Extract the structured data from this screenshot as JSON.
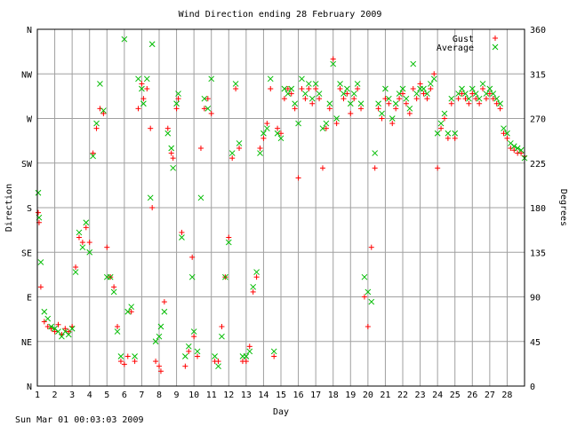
{
  "footer": {
    "timestamp": "Sun Mar 01 00:03:03 2009"
  },
  "chart_data": {
    "type": "scatter",
    "title": "Wind Direction ending 28 February 2009",
    "xlabel": "Day",
    "ylabel": "Direction",
    "y2label": "Degrees",
    "xlim": [
      1,
      29
    ],
    "ylim": [
      0,
      360
    ],
    "x_ticks": [
      1,
      2,
      3,
      4,
      5,
      6,
      7,
      8,
      9,
      10,
      11,
      12,
      13,
      14,
      15,
      16,
      17,
      18,
      19,
      20,
      21,
      22,
      23,
      24,
      25,
      26,
      27,
      28
    ],
    "y_ticks_compass": [
      {
        "label": "N",
        "value": 0
      },
      {
        "label": "NE",
        "value": 45
      },
      {
        "label": "E",
        "value": 90
      },
      {
        "label": "SE",
        "value": 135
      },
      {
        "label": "S",
        "value": 180
      },
      {
        "label": "SW",
        "value": 225
      },
      {
        "label": "W",
        "value": 270
      },
      {
        "label": "NW",
        "value": 315
      },
      {
        "label": "N",
        "value": 360
      }
    ],
    "y2_ticks": [
      0,
      45,
      90,
      135,
      180,
      225,
      270,
      315,
      360
    ],
    "grid": true,
    "legend_position": "top-right",
    "series": [
      {
        "name": "Gust",
        "color": "#ff0000",
        "marker": "plus",
        "points": [
          [
            1.05,
            175
          ],
          [
            1.1,
            165
          ],
          [
            1.2,
            100
          ],
          [
            1.4,
            65
          ],
          [
            1.6,
            60
          ],
          [
            1.8,
            58
          ],
          [
            2.0,
            55
          ],
          [
            2.2,
            62
          ],
          [
            2.4,
            52
          ],
          [
            2.6,
            58
          ],
          [
            2.8,
            55
          ],
          [
            3.0,
            60
          ],
          [
            3.2,
            120
          ],
          [
            3.4,
            150
          ],
          [
            3.6,
            145
          ],
          [
            3.8,
            160
          ],
          [
            4.0,
            145
          ],
          [
            4.2,
            235
          ],
          [
            4.4,
            260
          ],
          [
            4.6,
            280
          ],
          [
            4.8,
            275
          ],
          [
            5.0,
            140
          ],
          [
            5.2,
            110
          ],
          [
            5.4,
            100
          ],
          [
            5.6,
            60
          ],
          [
            5.8,
            25
          ],
          [
            6.0,
            22
          ],
          [
            6.2,
            30
          ],
          [
            6.4,
            75
          ],
          [
            6.6,
            25
          ],
          [
            6.8,
            280
          ],
          [
            7.0,
            305
          ],
          [
            7.1,
            290
          ],
          [
            7.3,
            300
          ],
          [
            7.5,
            260
          ],
          [
            7.6,
            180
          ],
          [
            7.8,
            25
          ],
          [
            8.0,
            20
          ],
          [
            8.1,
            15
          ],
          [
            8.3,
            85
          ],
          [
            8.5,
            260
          ],
          [
            8.7,
            235
          ],
          [
            8.8,
            230
          ],
          [
            9.0,
            280
          ],
          [
            9.1,
            290
          ],
          [
            9.3,
            155
          ],
          [
            9.5,
            20
          ],
          [
            9.7,
            35
          ],
          [
            9.9,
            130
          ],
          [
            10.0,
            50
          ],
          [
            10.2,
            30
          ],
          [
            10.4,
            240
          ],
          [
            10.6,
            280
          ],
          [
            10.8,
            290
          ],
          [
            11.0,
            275
          ],
          [
            11.2,
            25
          ],
          [
            11.4,
            25
          ],
          [
            11.6,
            60
          ],
          [
            11.8,
            110
          ],
          [
            12.0,
            150
          ],
          [
            12.2,
            230
          ],
          [
            12.4,
            300
          ],
          [
            12.6,
            240
          ],
          [
            12.8,
            25
          ],
          [
            13.0,
            25
          ],
          [
            13.2,
            40
          ],
          [
            13.4,
            95
          ],
          [
            13.6,
            110
          ],
          [
            13.8,
            240
          ],
          [
            14.0,
            250
          ],
          [
            14.2,
            265
          ],
          [
            14.4,
            300
          ],
          [
            14.6,
            30
          ],
          [
            14.8,
            260
          ],
          [
            15.0,
            255
          ],
          [
            15.2,
            290
          ],
          [
            15.4,
            300
          ],
          [
            15.6,
            295
          ],
          [
            15.8,
            280
          ],
          [
            16.0,
            210
          ],
          [
            16.2,
            300
          ],
          [
            16.4,
            290
          ],
          [
            16.6,
            300
          ],
          [
            16.8,
            285
          ],
          [
            17.0,
            300
          ],
          [
            17.2,
            290
          ],
          [
            17.4,
            220
          ],
          [
            17.6,
            260
          ],
          [
            17.8,
            280
          ],
          [
            18.0,
            330
          ],
          [
            18.2,
            265
          ],
          [
            18.4,
            300
          ],
          [
            18.6,
            290
          ],
          [
            18.8,
            295
          ],
          [
            19.0,
            275
          ],
          [
            19.2,
            290
          ],
          [
            19.4,
            300
          ],
          [
            19.6,
            280
          ],
          [
            19.8,
            90
          ],
          [
            20.0,
            60
          ],
          [
            20.2,
            140
          ],
          [
            20.4,
            220
          ],
          [
            20.6,
            280
          ],
          [
            20.8,
            270
          ],
          [
            21.0,
            290
          ],
          [
            21.2,
            285
          ],
          [
            21.4,
            265
          ],
          [
            21.6,
            280
          ],
          [
            21.8,
            290
          ],
          [
            22.0,
            295
          ],
          [
            22.2,
            285
          ],
          [
            22.4,
            275
          ],
          [
            22.6,
            300
          ],
          [
            22.8,
            290
          ],
          [
            23.0,
            305
          ],
          [
            23.2,
            295
          ],
          [
            23.4,
            290
          ],
          [
            23.6,
            300
          ],
          [
            23.8,
            315
          ],
          [
            24.0,
            220
          ],
          [
            24.2,
            260
          ],
          [
            24.4,
            270
          ],
          [
            24.6,
            250
          ],
          [
            24.8,
            285
          ],
          [
            25.0,
            250
          ],
          [
            25.2,
            290
          ],
          [
            25.4,
            295
          ],
          [
            25.6,
            290
          ],
          [
            25.8,
            285
          ],
          [
            26.0,
            295
          ],
          [
            26.2,
            290
          ],
          [
            26.4,
            285
          ],
          [
            26.6,
            300
          ],
          [
            26.8,
            290
          ],
          [
            27.0,
            295
          ],
          [
            27.2,
            290
          ],
          [
            27.4,
            285
          ],
          [
            27.6,
            280
          ],
          [
            27.8,
            255
          ],
          [
            28.0,
            250
          ],
          [
            28.2,
            240
          ],
          [
            28.4,
            238
          ],
          [
            28.6,
            235
          ],
          [
            28.8,
            235
          ],
          [
            29.0,
            232
          ]
        ]
      },
      {
        "name": "Average",
        "color": "#00bb00",
        "marker": "cross",
        "points": [
          [
            1.05,
            195
          ],
          [
            1.1,
            170
          ],
          [
            1.2,
            125
          ],
          [
            1.4,
            75
          ],
          [
            1.6,
            68
          ],
          [
            1.8,
            60
          ],
          [
            2.0,
            58
          ],
          [
            2.2,
            55
          ],
          [
            2.4,
            50
          ],
          [
            2.6,
            55
          ],
          [
            2.8,
            52
          ],
          [
            3.0,
            58
          ],
          [
            3.2,
            115
          ],
          [
            3.4,
            155
          ],
          [
            3.6,
            140
          ],
          [
            3.8,
            165
          ],
          [
            4.0,
            135
          ],
          [
            4.2,
            232
          ],
          [
            4.4,
            265
          ],
          [
            4.6,
            305
          ],
          [
            4.8,
            278
          ],
          [
            5.0,
            110
          ],
          [
            5.2,
            110
          ],
          [
            5.4,
            95
          ],
          [
            5.6,
            55
          ],
          [
            5.8,
            30
          ],
          [
            6.0,
            350
          ],
          [
            6.2,
            75
          ],
          [
            6.4,
            80
          ],
          [
            6.6,
            30
          ],
          [
            6.8,
            310
          ],
          [
            7.0,
            300
          ],
          [
            7.1,
            285
          ],
          [
            7.3,
            310
          ],
          [
            7.5,
            190
          ],
          [
            7.6,
            345
          ],
          [
            7.8,
            45
          ],
          [
            8.0,
            50
          ],
          [
            8.1,
            60
          ],
          [
            8.3,
            75
          ],
          [
            8.5,
            255
          ],
          [
            8.7,
            240
          ],
          [
            8.8,
            220
          ],
          [
            9.0,
            285
          ],
          [
            9.1,
            295
          ],
          [
            9.3,
            150
          ],
          [
            9.5,
            30
          ],
          [
            9.7,
            40
          ],
          [
            9.9,
            110
          ],
          [
            10.0,
            55
          ],
          [
            10.2,
            35
          ],
          [
            10.4,
            190
          ],
          [
            10.6,
            290
          ],
          [
            10.8,
            280
          ],
          [
            11.0,
            310
          ],
          [
            11.2,
            30
          ],
          [
            11.4,
            20
          ],
          [
            11.6,
            50
          ],
          [
            11.8,
            110
          ],
          [
            12.0,
            145
          ],
          [
            12.2,
            235
          ],
          [
            12.4,
            305
          ],
          [
            12.6,
            245
          ],
          [
            12.8,
            30
          ],
          [
            13.0,
            30
          ],
          [
            13.2,
            35
          ],
          [
            13.4,
            100
          ],
          [
            13.6,
            115
          ],
          [
            13.8,
            235
          ],
          [
            14.0,
            255
          ],
          [
            14.2,
            260
          ],
          [
            14.4,
            310
          ],
          [
            14.6,
            35
          ],
          [
            14.8,
            255
          ],
          [
            15.0,
            250
          ],
          [
            15.2,
            300
          ],
          [
            15.4,
            295
          ],
          [
            15.6,
            300
          ],
          [
            15.8,
            285
          ],
          [
            16.0,
            265
          ],
          [
            16.2,
            310
          ],
          [
            16.4,
            295
          ],
          [
            16.6,
            305
          ],
          [
            16.8,
            290
          ],
          [
            17.0,
            305
          ],
          [
            17.2,
            295
          ],
          [
            17.4,
            260
          ],
          [
            17.6,
            265
          ],
          [
            17.8,
            285
          ],
          [
            18.0,
            325
          ],
          [
            18.2,
            270
          ],
          [
            18.4,
            305
          ],
          [
            18.6,
            295
          ],
          [
            18.8,
            300
          ],
          [
            19.0,
            285
          ],
          [
            19.2,
            295
          ],
          [
            19.4,
            305
          ],
          [
            19.6,
            285
          ],
          [
            19.8,
            110
          ],
          [
            20.0,
            95
          ],
          [
            20.2,
            85
          ],
          [
            20.4,
            235
          ],
          [
            20.6,
            285
          ],
          [
            20.8,
            275
          ],
          [
            21.0,
            300
          ],
          [
            21.2,
            290
          ],
          [
            21.4,
            270
          ],
          [
            21.6,
            285
          ],
          [
            21.8,
            295
          ],
          [
            22.0,
            300
          ],
          [
            22.2,
            290
          ],
          [
            22.4,
            280
          ],
          [
            22.6,
            325
          ],
          [
            22.8,
            295
          ],
          [
            23.0,
            300
          ],
          [
            23.2,
            300
          ],
          [
            23.4,
            295
          ],
          [
            23.6,
            305
          ],
          [
            23.8,
            310
          ],
          [
            24.0,
            255
          ],
          [
            24.2,
            265
          ],
          [
            24.4,
            275
          ],
          [
            24.6,
            255
          ],
          [
            24.8,
            290
          ],
          [
            25.0,
            255
          ],
          [
            25.2,
            295
          ],
          [
            25.4,
            300
          ],
          [
            25.6,
            295
          ],
          [
            25.8,
            290
          ],
          [
            26.0,
            300
          ],
          [
            26.2,
            295
          ],
          [
            26.4,
            290
          ],
          [
            26.6,
            305
          ],
          [
            26.8,
            295
          ],
          [
            27.0,
            300
          ],
          [
            27.2,
            295
          ],
          [
            27.4,
            290
          ],
          [
            27.6,
            285
          ],
          [
            27.8,
            260
          ],
          [
            28.0,
            255
          ],
          [
            28.2,
            245
          ],
          [
            28.4,
            242
          ],
          [
            28.6,
            240
          ],
          [
            28.8,
            238
          ],
          [
            29.0,
            230
          ]
        ]
      }
    ]
  }
}
